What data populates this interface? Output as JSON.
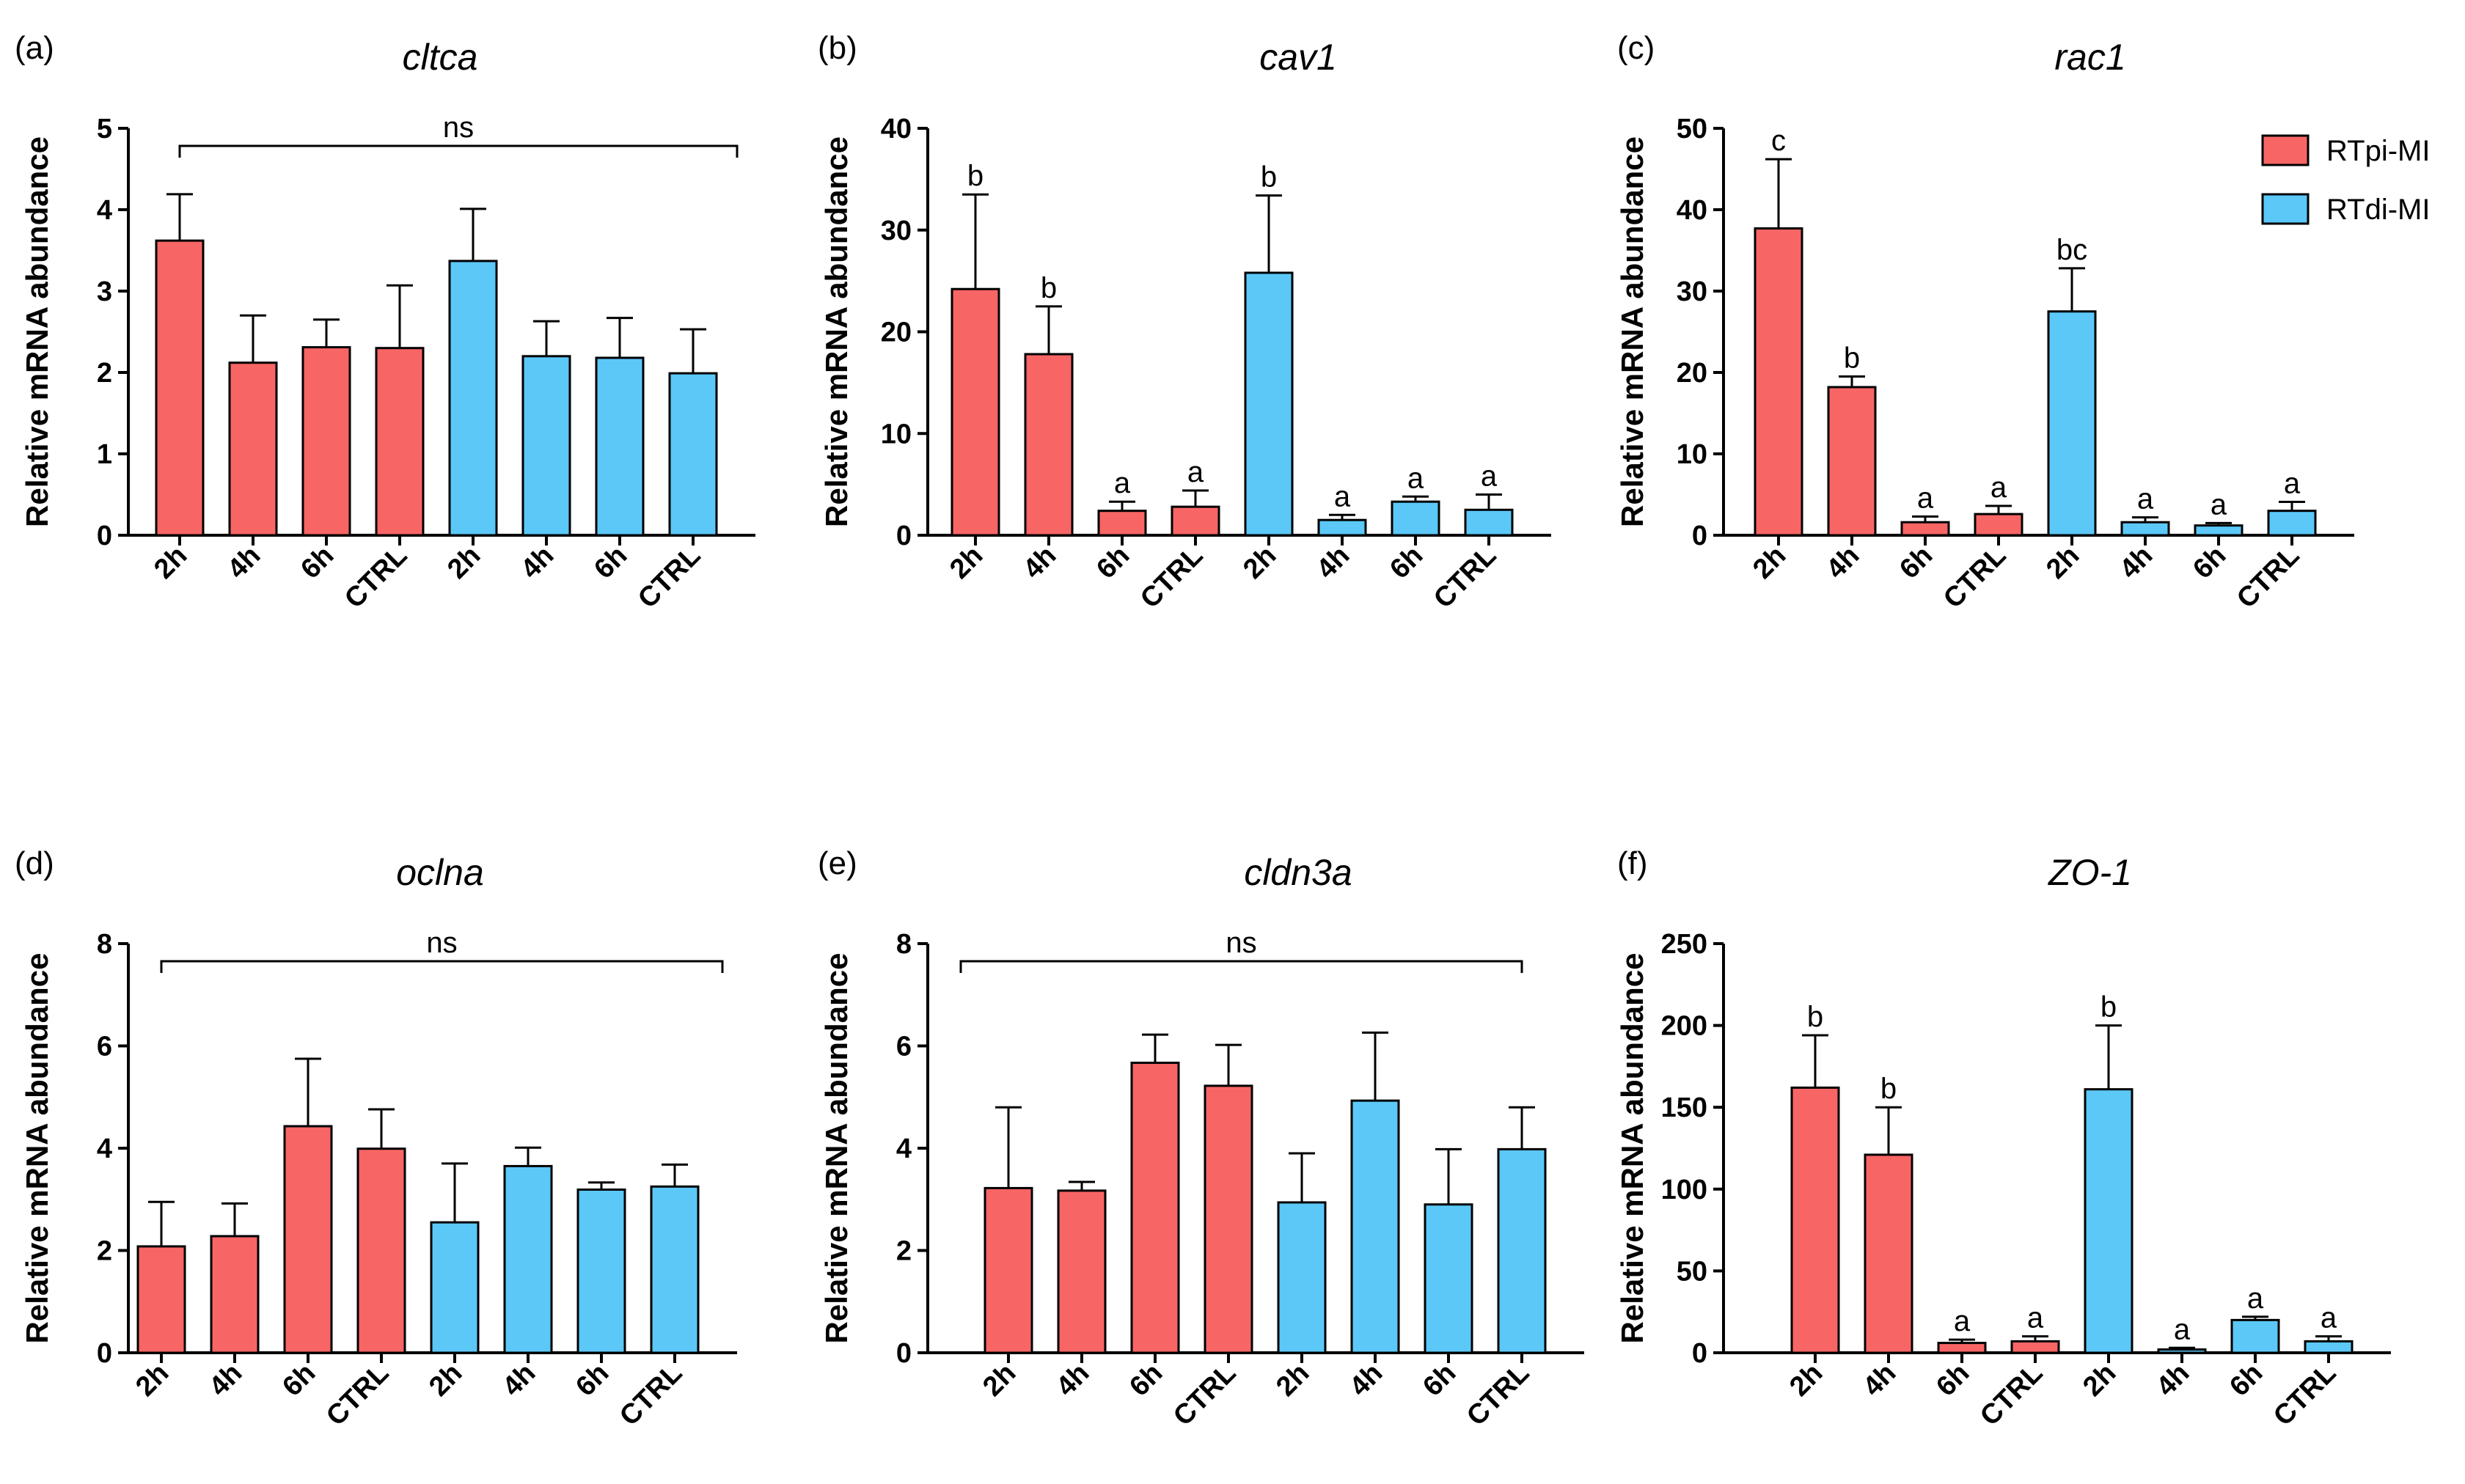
{
  "colors": {
    "rtpi": "#F86565",
    "rtdi": "#5BC8F8"
  },
  "legend": [
    {
      "label": "RTpi-MI",
      "color": "#F86565"
    },
    {
      "label": "RTdi-MI",
      "color": "#5BC8F8"
    }
  ],
  "chart_data": [
    {
      "panel": "(a)",
      "type": "bar",
      "title": "cltca",
      "ylabel": "Relative mRNA abundance",
      "ylim": [
        0,
        5
      ],
      "yticks": [
        0,
        1,
        2,
        3,
        4,
        5
      ],
      "categories": [
        "2h",
        "4h",
        "6h",
        "CTRL",
        "2h",
        "4h",
        "6h",
        "CTRL"
      ],
      "groups": [
        "RTpi-MI",
        "RTpi-MI",
        "RTpi-MI",
        "RTpi-MI",
        "RTdi-MI",
        "RTdi-MI",
        "RTdi-MI",
        "RTdi-MI"
      ],
      "values": [
        3.62,
        2.12,
        2.31,
        2.3,
        3.37,
        2.2,
        2.18,
        1.99
      ],
      "errors": [
        0.57,
        0.58,
        0.34,
        0.77,
        0.64,
        0.43,
        0.49,
        0.54
      ],
      "significance": "ns",
      "letters": []
    },
    {
      "panel": "(b)",
      "type": "bar",
      "title": "cav1",
      "ylabel": "Relative mRNA abundance",
      "ylim": [
        0,
        40
      ],
      "yticks": [
        0,
        10,
        20,
        30,
        40
      ],
      "categories": [
        "2h",
        "4h",
        "6h",
        "CTRL",
        "2h",
        "4h",
        "6h",
        "CTRL"
      ],
      "groups": [
        "RTpi-MI",
        "RTpi-MI",
        "RTpi-MI",
        "RTpi-MI",
        "RTdi-MI",
        "RTdi-MI",
        "RTdi-MI",
        "RTdi-MI"
      ],
      "values": [
        24.2,
        17.8,
        2.4,
        2.8,
        25.8,
        1.5,
        3.3,
        2.5
      ],
      "errors": [
        9.3,
        4.7,
        0.9,
        1.6,
        7.6,
        0.5,
        0.5,
        1.5
      ],
      "significance": "",
      "letters": [
        "b",
        "b",
        "a",
        "a",
        "b",
        "a",
        "a",
        "a"
      ]
    },
    {
      "panel": "(c)",
      "type": "bar",
      "title": "rac1",
      "ylabel": "Relative mRNA abundance",
      "ylim": [
        0,
        50
      ],
      "yticks": [
        0,
        10,
        20,
        30,
        40,
        50
      ],
      "categories": [
        "2h",
        "4h",
        "6h",
        "CTRL",
        "2h",
        "4h",
        "6h",
        "CTRL"
      ],
      "groups": [
        "RTpi-MI",
        "RTpi-MI",
        "RTpi-MI",
        "RTpi-MI",
        "RTdi-MI",
        "RTdi-MI",
        "RTdi-MI",
        "RTdi-MI"
      ],
      "values": [
        37.7,
        18.2,
        1.6,
        2.6,
        27.5,
        1.6,
        1.2,
        3.0
      ],
      "errors": [
        8.5,
        1.3,
        0.7,
        1.0,
        5.3,
        0.6,
        0.3,
        1.1
      ],
      "significance": "",
      "letters": [
        "c",
        "b",
        "a",
        "a",
        "bc",
        "a",
        "a",
        "a"
      ]
    },
    {
      "panel": "(d)",
      "type": "bar",
      "title": "oclna",
      "ylabel": "Relative mRNA abundance",
      "ylim": [
        0,
        8
      ],
      "yticks": [
        0,
        2,
        4,
        6,
        8
      ],
      "categories": [
        "2h",
        "4h",
        "6h",
        "CTRL",
        "2h",
        "4h",
        "6h",
        "CTRL"
      ],
      "groups": [
        "RTpi-MI",
        "RTpi-MI",
        "RTpi-MI",
        "RTpi-MI",
        "RTdi-MI",
        "RTdi-MI",
        "RTdi-MI",
        "RTdi-MI"
      ],
      "values": [
        2.08,
        2.28,
        4.43,
        3.99,
        2.55,
        3.65,
        3.19,
        3.25
      ],
      "errors": [
        0.87,
        0.64,
        1.32,
        0.77,
        1.15,
        0.36,
        0.14,
        0.43
      ],
      "significance": "ns",
      "letters": []
    },
    {
      "panel": "(e)",
      "type": "bar",
      "title": "cldn3a",
      "ylabel": "Relative mRNA abundance",
      "ylim": [
        0,
        8
      ],
      "yticks": [
        0,
        2,
        4,
        6,
        8
      ],
      "categories": [
        "2h",
        "4h",
        "6h",
        "CTRL",
        "2h",
        "4h",
        "6h",
        "CTRL"
      ],
      "groups": [
        "RTpi-MI",
        "RTpi-MI",
        "RTpi-MI",
        "RTpi-MI",
        "RTdi-MI",
        "RTdi-MI",
        "RTdi-MI",
        "RTdi-MI"
      ],
      "values": [
        3.22,
        3.17,
        5.67,
        5.22,
        2.94,
        4.93,
        2.9,
        3.98
      ],
      "errors": [
        1.58,
        0.17,
        0.55,
        0.8,
        0.96,
        1.33,
        1.08,
        0.82
      ],
      "significance": "ns",
      "letters": []
    },
    {
      "panel": "(f)",
      "type": "bar",
      "title": "ZO-1",
      "ylabel": "Relative mRNA abundance",
      "ylim": [
        0,
        250
      ],
      "yticks": [
        0,
        50,
        100,
        150,
        200,
        250
      ],
      "categories": [
        "2h",
        "4h",
        "6h",
        "CTRL",
        "2h",
        "4h",
        "6h",
        "CTRL"
      ],
      "groups": [
        "RTpi-MI",
        "RTpi-MI",
        "RTpi-MI",
        "RTpi-MI",
        "RTdi-MI",
        "RTdi-MI",
        "RTdi-MI",
        "RTdi-MI"
      ],
      "values": [
        162,
        121,
        6,
        7,
        161,
        2,
        20,
        7
      ],
      "errors": [
        32,
        29,
        2,
        3,
        39,
        1,
        2,
        3
      ],
      "significance": "",
      "letters": [
        "b",
        "b",
        "a",
        "a",
        "b",
        "a",
        "a",
        "a"
      ]
    }
  ]
}
